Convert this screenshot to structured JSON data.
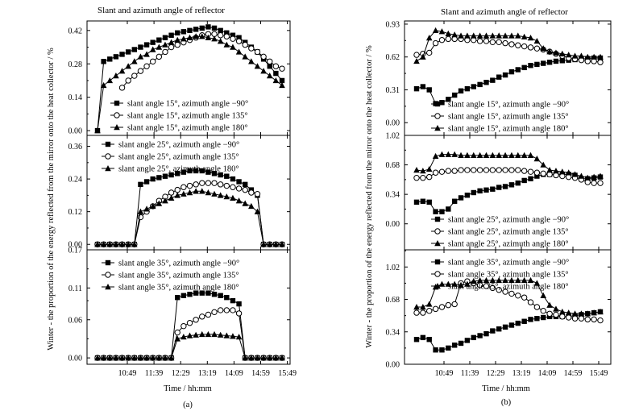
{
  "figure": {
    "panel_a_caption": "(a)",
    "panel_b_caption": "(b)",
    "title": "Slant and azimuth angle of reflector",
    "ylabel": "Winter - the proportion of the energy reflected from the mirror onto the heat collector / %",
    "xlabel": "Time / hh:mm"
  },
  "colors": {
    "ink": "#000000",
    "background": "#ffffff"
  },
  "chart_data": [
    {
      "id": "a1",
      "type": "line",
      "panel": "a",
      "slant": 15,
      "x_ticks": [
        "10:49",
        "11:39",
        "12:29",
        "13:19",
        "14:09",
        "14:59",
        "15:49"
      ],
      "ylim": [
        -0.02,
        0.46
      ],
      "yticks": [
        "0.00",
        "0.14",
        "0.28",
        "0.42"
      ],
      "title": "Slant and azimuth angle of reflector",
      "xlabel": "Time / hh:mm",
      "series": [
        {
          "name": "slant angle 15°, azimuth angle −90°",
          "marker": "square",
          "values": [
            0.0,
            0.29,
            0.3,
            0.31,
            0.32,
            0.33,
            0.34,
            0.35,
            0.36,
            0.37,
            0.38,
            0.39,
            0.4,
            0.41,
            0.415,
            0.42,
            0.425,
            0.43,
            0.435,
            0.43,
            0.42,
            0.41,
            0.4,
            0.39,
            0.37,
            0.35,
            0.33,
            0.3,
            0.27,
            0.24,
            0.21
          ]
        },
        {
          "name": "slant angle 15°, azimuth angle 135°",
          "marker": "circle",
          "values": [
            null,
            null,
            null,
            null,
            0.18,
            0.21,
            0.23,
            0.25,
            0.27,
            0.29,
            0.31,
            0.33,
            0.35,
            0.36,
            0.37,
            0.38,
            0.39,
            0.4,
            0.405,
            0.405,
            0.4,
            0.395,
            0.385,
            0.375,
            0.36,
            0.345,
            0.33,
            0.31,
            0.29,
            0.27,
            0.26
          ]
        },
        {
          "name": "slant angle 15°, azimuth angle 180°",
          "marker": "triangle",
          "values": [
            0.0,
            0.19,
            0.21,
            0.23,
            0.25,
            0.27,
            0.29,
            0.31,
            0.32,
            0.34,
            0.35,
            0.36,
            0.37,
            0.38,
            0.385,
            0.39,
            0.395,
            0.395,
            0.39,
            0.385,
            0.375,
            0.36,
            0.35,
            0.33,
            0.31,
            0.29,
            0.27,
            0.25,
            0.23,
            0.21,
            0.19
          ]
        }
      ]
    },
    {
      "id": "a2",
      "type": "line",
      "panel": "a",
      "slant": 25,
      "x_ticks": [
        "10:49",
        "11:39",
        "12:29",
        "13:19",
        "14:09",
        "14:59",
        "15:49"
      ],
      "ylim": [
        -0.02,
        0.4
      ],
      "yticks": [
        "0.00",
        "0.12",
        "0.24",
        "0.36"
      ],
      "series": [
        {
          "name": "slant angle 25°, azimuth angle −90°",
          "marker": "square",
          "values": [
            0.0,
            0.0,
            0.0,
            0.0,
            0.0,
            0.0,
            0.0,
            0.22,
            0.23,
            0.24,
            0.245,
            0.25,
            0.255,
            0.26,
            0.265,
            0.27,
            0.27,
            0.27,
            0.265,
            0.26,
            0.255,
            0.25,
            0.24,
            0.23,
            0.22,
            0.2,
            0.18,
            0.0,
            0.0,
            0.0,
            0.0
          ]
        },
        {
          "name": "slant angle 25°, azimuth angle 135°",
          "marker": "circle",
          "values": [
            0.0,
            0.0,
            0.0,
            0.0,
            0.0,
            0.0,
            0.0,
            0.1,
            0.12,
            0.14,
            0.16,
            0.175,
            0.19,
            0.2,
            0.21,
            0.215,
            0.22,
            0.225,
            0.225,
            0.225,
            0.22,
            0.215,
            0.21,
            0.205,
            0.2,
            0.19,
            0.185,
            0.0,
            0.0,
            0.0,
            0.0
          ]
        },
        {
          "name": "slant angle 25°, azimuth angle 180°",
          "marker": "triangle",
          "values": [
            0.0,
            0.0,
            0.0,
            0.0,
            0.0,
            0.0,
            0.0,
            0.12,
            0.13,
            0.14,
            0.15,
            0.16,
            0.17,
            0.18,
            0.185,
            0.19,
            0.195,
            0.195,
            0.19,
            0.185,
            0.18,
            0.175,
            0.17,
            0.16,
            0.15,
            0.14,
            0.12,
            0.0,
            0.0,
            0.0,
            0.0
          ]
        }
      ]
    },
    {
      "id": "a3",
      "type": "line",
      "panel": "a",
      "slant": 35,
      "x_ticks": [
        "10:49",
        "11:39",
        "12:29",
        "13:19",
        "14:09",
        "14:59",
        "15:49"
      ],
      "ylim": [
        -0.01,
        0.17
      ],
      "yticks": [
        "0.00",
        "0.06",
        "0.11",
        "0.17"
      ],
      "series": [
        {
          "name": "slant angle 35°, azimuth angle −90°",
          "marker": "square",
          "values": [
            0.0,
            0.0,
            0.0,
            0.0,
            0.0,
            0.0,
            0.0,
            0.0,
            0.0,
            0.0,
            0.0,
            0.0,
            0.0,
            0.095,
            0.098,
            0.1,
            0.102,
            0.102,
            0.102,
            0.1,
            0.098,
            0.095,
            0.09,
            0.085,
            0.0,
            0.0,
            0.0,
            0.0,
            0.0,
            0.0,
            0.0
          ]
        },
        {
          "name": "slant angle 35°, azimuth angle 135°",
          "marker": "circle",
          "values": [
            0.0,
            0.0,
            0.0,
            0.0,
            0.0,
            0.0,
            0.0,
            0.0,
            0.0,
            0.0,
            0.0,
            0.0,
            0.0,
            0.04,
            0.05,
            0.055,
            0.06,
            0.065,
            0.068,
            0.072,
            0.075,
            0.075,
            0.075,
            0.07,
            0.0,
            0.0,
            0.0,
            0.0,
            0.0,
            0.0,
            0.0
          ]
        },
        {
          "name": "slant angle 35°, azimuth angle 180°",
          "marker": "triangle",
          "values": [
            0.0,
            0.0,
            0.0,
            0.0,
            0.0,
            0.0,
            0.0,
            0.0,
            0.0,
            0.0,
            0.0,
            0.0,
            0.0,
            0.03,
            0.033,
            0.035,
            0.036,
            0.037,
            0.037,
            0.037,
            0.036,
            0.035,
            0.034,
            0.033,
            0.0,
            0.0,
            0.0,
            0.0,
            0.0,
            0.0,
            0.0
          ]
        }
      ]
    },
    {
      "id": "b1",
      "type": "line",
      "panel": "b",
      "slant": 15,
      "x_ticks": [
        "10:49",
        "11:39",
        "12:29",
        "13:19",
        "14:09",
        "14:59",
        "15:49"
      ],
      "ylim": [
        -0.12,
        0.96
      ],
      "yticks": [
        "0.00",
        "0.31",
        "0.62",
        "0.93"
      ],
      "title": "Slant and azimuth angle of reflector",
      "series": [
        {
          "name": "slant angle 15°, azimuth angle −90°",
          "marker": "square",
          "values": [
            0.32,
            0.34,
            0.31,
            0.18,
            0.19,
            0.22,
            0.26,
            0.3,
            0.32,
            0.34,
            0.36,
            0.38,
            0.4,
            0.43,
            0.45,
            0.48,
            0.5,
            0.52,
            0.54,
            0.55,
            0.56,
            0.57,
            0.58,
            0.585,
            0.59,
            0.595,
            0.6,
            0.605,
            0.61,
            0.61
          ]
        },
        {
          "name": "slant angle 15°, azimuth angle 135°",
          "marker": "circle",
          "values": [
            0.64,
            0.65,
            0.66,
            0.75,
            0.78,
            0.79,
            0.79,
            0.79,
            0.78,
            0.78,
            0.77,
            0.77,
            0.76,
            0.76,
            0.75,
            0.74,
            0.73,
            0.72,
            0.71,
            0.7,
            0.69,
            0.67,
            0.65,
            0.63,
            0.61,
            0.6,
            0.59,
            0.58,
            0.58,
            0.57
          ]
        },
        {
          "name": "slant angle 15°, azimuth angle 180°",
          "marker": "triangle",
          "values": [
            0.58,
            0.62,
            0.8,
            0.87,
            0.86,
            0.84,
            0.83,
            0.82,
            0.82,
            0.82,
            0.82,
            0.82,
            0.82,
            0.82,
            0.82,
            0.82,
            0.82,
            0.81,
            0.8,
            0.77,
            0.7,
            0.67,
            0.66,
            0.65,
            0.64,
            0.63,
            0.63,
            0.62,
            0.62,
            0.62
          ]
        }
      ]
    },
    {
      "id": "b2",
      "type": "line",
      "panel": "b",
      "slant": 25,
      "x_ticks": [
        "10:49",
        "11:39",
        "12:29",
        "13:19",
        "14:09",
        "14:59",
        "15:49"
      ],
      "ylim": [
        -0.3,
        1.02
      ],
      "yticks": [
        "0.00",
        "0.34",
        "0.68",
        "1.02"
      ],
      "series": [
        {
          "name": "slant angle 25°, azimuth angle −90°",
          "marker": "square",
          "values": [
            0.25,
            0.26,
            0.25,
            0.14,
            0.14,
            0.17,
            0.26,
            0.3,
            0.33,
            0.36,
            0.38,
            0.39,
            0.4,
            0.42,
            0.43,
            0.45,
            0.47,
            0.5,
            0.52,
            0.55,
            0.57,
            0.57,
            0.57,
            0.57,
            0.57,
            0.56,
            0.52,
            0.52,
            0.53,
            0.54
          ]
        },
        {
          "name": "slant angle 25°, azimuth angle 135°",
          "marker": "circle",
          "values": [
            0.53,
            0.53,
            0.54,
            0.59,
            0.6,
            0.61,
            0.61,
            0.62,
            0.62,
            0.62,
            0.62,
            0.62,
            0.62,
            0.62,
            0.62,
            0.62,
            0.62,
            0.61,
            0.6,
            0.59,
            0.58,
            0.57,
            0.56,
            0.55,
            0.54,
            0.53,
            0.51,
            0.48,
            0.47,
            0.47
          ]
        },
        {
          "name": "slant angle 25°, azimuth angle 180°",
          "marker": "triangle",
          "values": [
            0.62,
            0.61,
            0.63,
            0.78,
            0.8,
            0.8,
            0.8,
            0.79,
            0.79,
            0.79,
            0.79,
            0.79,
            0.79,
            0.79,
            0.79,
            0.79,
            0.79,
            0.79,
            0.79,
            0.75,
            0.68,
            0.62,
            0.61,
            0.6,
            0.59,
            0.57,
            0.55,
            0.53,
            0.54,
            0.55
          ]
        }
      ]
    },
    {
      "id": "b3",
      "type": "line",
      "panel": "b",
      "slant": 35,
      "x_ticks": [
        "10:49",
        "11:39",
        "12:29",
        "13:19",
        "14:09",
        "14:59",
        "15:49"
      ],
      "ylim": [
        0.0,
        1.2
      ],
      "yticks": [
        "0.00",
        "0.34",
        "0.68",
        "1.02"
      ],
      "series": [
        {
          "name": "slant angle 35°, azimuth angle −90°",
          "marker": "square",
          "values": [
            0.26,
            0.28,
            0.26,
            0.15,
            0.15,
            0.17,
            0.2,
            0.22,
            0.25,
            0.28,
            0.3,
            0.32,
            0.35,
            0.37,
            0.39,
            0.41,
            0.43,
            0.45,
            0.47,
            0.48,
            0.49,
            0.5,
            0.5,
            0.5,
            0.5,
            0.51,
            0.52,
            0.53,
            0.54,
            0.55
          ]
        },
        {
          "name": "slant angle 35°, azimuth angle 135°",
          "marker": "circle",
          "values": [
            0.54,
            0.54,
            0.56,
            0.58,
            0.6,
            0.62,
            0.63,
            0.85,
            0.87,
            0.85,
            0.83,
            0.82,
            0.8,
            0.78,
            0.76,
            0.74,
            0.72,
            0.7,
            0.65,
            0.6,
            0.56,
            0.53,
            0.52,
            0.5,
            0.49,
            0.48,
            0.48,
            0.47,
            0.47,
            0.46
          ]
        },
        {
          "name": "slant angle 35°, azimuth angle 180°",
          "marker": "triangle",
          "values": [
            0.6,
            0.6,
            0.63,
            0.81,
            0.84,
            0.84,
            0.84,
            0.83,
            0.84,
            0.87,
            0.88,
            0.88,
            0.88,
            0.88,
            0.88,
            0.88,
            0.88,
            0.88,
            0.88,
            0.85,
            0.72,
            0.62,
            0.58,
            0.55,
            0.54,
            0.53,
            0.53,
            0.53,
            0.54,
            0.55
          ]
        }
      ]
    }
  ]
}
